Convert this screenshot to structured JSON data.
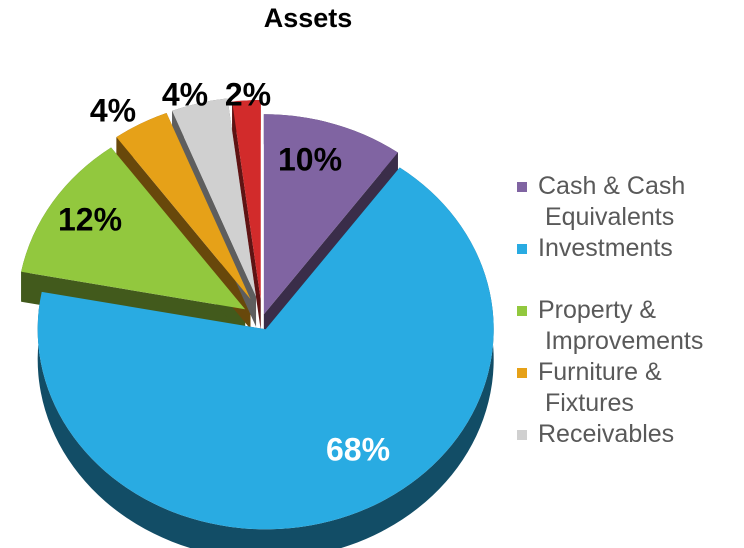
{
  "chart_data": {
    "type": "pie",
    "title": "Assets",
    "categories": [
      "Cash & Cash Equivalents",
      "Investments",
      "Property & Improvements",
      "Furniture & Fixtures",
      "Receivables",
      null
    ],
    "values": [
      10,
      68,
      12,
      4,
      4,
      2
    ],
    "value_labels": [
      "10%",
      "68%",
      "12%",
      "4%",
      "4%",
      "2%"
    ],
    "colors": [
      "#8064a2",
      "#29abe2",
      "#92c83e",
      "#e6a118",
      "#d0d0d0",
      "#d22b2b"
    ],
    "legend": "right"
  }
}
